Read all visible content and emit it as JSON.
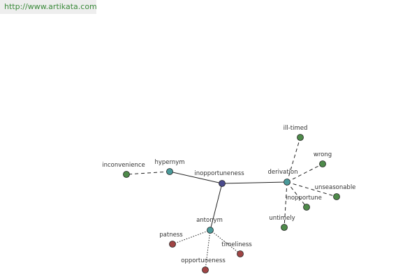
{
  "header": {
    "url": "http://www.artikata.com"
  },
  "nodes": [
    {
      "label": "inopportuneness"
    },
    {
      "label": "hypernym"
    },
    {
      "label": "inconvenience"
    },
    {
      "label": "derivation"
    },
    {
      "label": "ill-timed"
    },
    {
      "label": "wrong"
    },
    {
      "label": "unseasonable"
    },
    {
      "label": "inopportune"
    },
    {
      "label": "untimely"
    },
    {
      "label": "antonym"
    },
    {
      "label": "patness"
    },
    {
      "label": "timeliness"
    },
    {
      "label": "opportuneness"
    }
  ]
}
